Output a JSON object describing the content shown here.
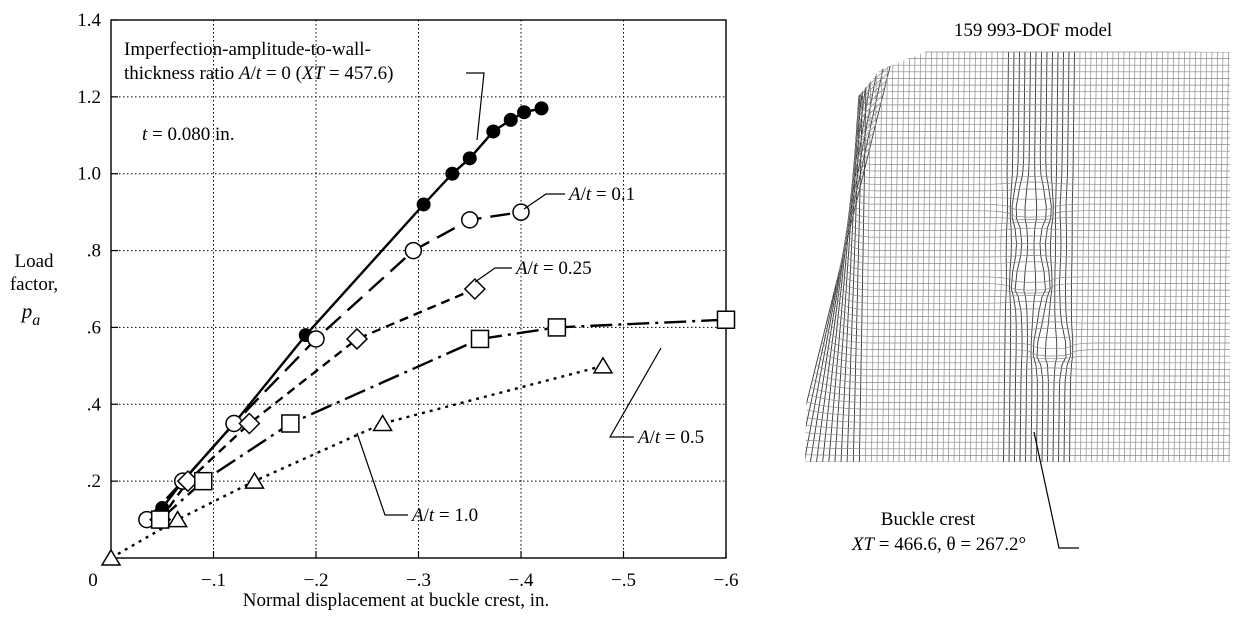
{
  "chart_data": [
    {
      "type": "line",
      "title": "",
      "xlabel": "Normal displacement at buckle crest, in.",
      "ylabel_lines": [
        "Load",
        "factor,"
      ],
      "ylabel_symbol": "p",
      "ylabel_subscript": "a",
      "xlim": [
        0,
        -0.6
      ],
      "ylim": [
        0,
        1.4
      ],
      "x_ticks": [
        0,
        -0.1,
        -0.2,
        -0.3,
        -0.4,
        -0.5,
        -0.6
      ],
      "x_tick_labels": [
        "0",
        "−.1",
        "−.2",
        "−.3",
        "−.4",
        "−.5",
        "−.6"
      ],
      "y_ticks": [
        0.2,
        0.4,
        0.6,
        0.8,
        1.0,
        1.2,
        1.4
      ],
      "y_tick_labels": [
        ".2",
        ".4",
        ".6",
        ".8",
        "1.0",
        "1.2",
        "1.4"
      ],
      "grid": true,
      "series": [
        {
          "name": "A/t = 0",
          "marker": "filled-circle",
          "dash": "solid",
          "x": [
            -0.036,
            -0.05,
            -0.07,
            -0.12,
            -0.19,
            -0.305,
            -0.333,
            -0.35,
            -0.373,
            -0.39,
            -0.403,
            -0.42
          ],
          "y": [
            0.1,
            0.13,
            0.2,
            0.35,
            0.58,
            0.92,
            1.0,
            1.04,
            1.11,
            1.14,
            1.16,
            1.17
          ]
        },
        {
          "name": "A/t = 0.1",
          "marker": "open-circle",
          "dash": "long-dash",
          "x": [
            -0.035,
            -0.07,
            -0.12,
            -0.2,
            -0.295,
            -0.35,
            -0.4
          ],
          "y": [
            0.1,
            0.2,
            0.35,
            0.57,
            0.8,
            0.88,
            0.9
          ]
        },
        {
          "name": "A/t = 0.25",
          "marker": "diamond",
          "dash": "short-dash",
          "x": [
            -0.048,
            -0.075,
            -0.135,
            -0.24,
            -0.355
          ],
          "y": [
            0.1,
            0.2,
            0.35,
            0.57,
            0.7
          ]
        },
        {
          "name": "A/t = 0.5",
          "marker": "square",
          "dash": "dash-dot",
          "x": [
            -0.048,
            -0.09,
            -0.175,
            -0.36,
            -0.435,
            -0.6
          ],
          "y": [
            0.1,
            0.2,
            0.35,
            0.57,
            0.6,
            0.62
          ]
        },
        {
          "name": "A/t = 1.0",
          "marker": "triangle",
          "dash": "dotted",
          "x": [
            0,
            -0.065,
            -0.14,
            -0.265,
            -0.48
          ],
          "y": [
            0.0,
            0.1,
            0.2,
            0.35,
            0.5
          ]
        }
      ],
      "annotations": {
        "imperfection_line1": "Imperfection-amplitude-to-wall-",
        "imperfection_line2_a": "thickness ratio ",
        "imperfection_line2_b": "A",
        "imperfection_line2_c": "/",
        "imperfection_line2_d": "t",
        "imperfection_line2_e": " = 0 (",
        "imperfection_line2_f": "XT",
        "imperfection_line2_g": " = 457.6)",
        "thickness_sym": "t",
        "thickness_val": " = 0.080 in.",
        "label_sym_a": "A",
        "label_sym_slash": "/",
        "label_sym_t": "t",
        "label_01": " = 0.1",
        "label_025": " = 0.25",
        "label_05": " = 0.5",
        "label_10": " = 1.0"
      }
    }
  ],
  "model": {
    "title": "159 993-DOF model",
    "crest_label": "Buckle crest",
    "crest_coord_sym": "XT",
    "crest_coord_val": " = 466.6, θ = 267.2°"
  }
}
